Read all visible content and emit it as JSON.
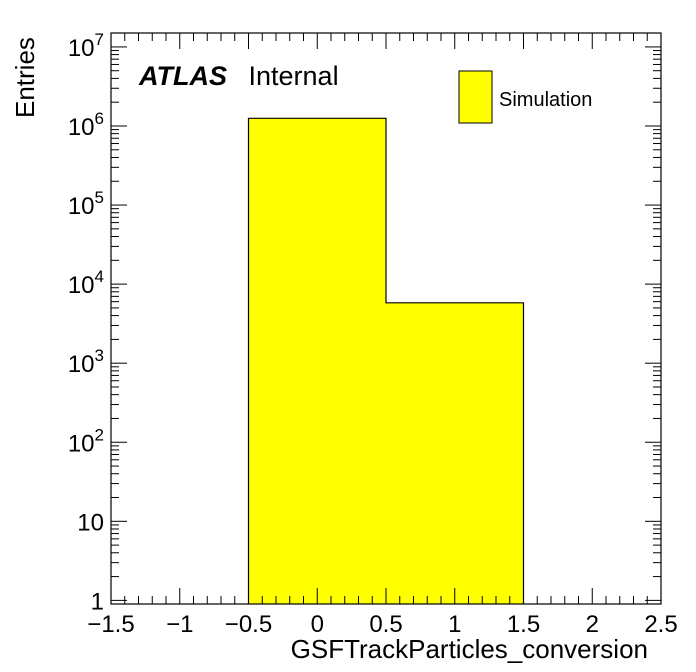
{
  "chart_data": {
    "type": "bar",
    "bins": [
      {
        "x_low": -0.5,
        "x_high": 0.5,
        "value": 1250000
      },
      {
        "x_low": 0.5,
        "x_high": 1.5,
        "value": 5800
      }
    ],
    "xlabel": "GSFTrackParticles_conversion",
    "ylabel": "Entries",
    "xlim": [
      -1.5,
      2.5
    ],
    "ylim": [
      0.9,
      15000000
    ],
    "yscale": "log",
    "x_ticks": [
      {
        "value": -1.5,
        "label": "−1.5"
      },
      {
        "value": -1.0,
        "label": "−1"
      },
      {
        "value": -0.5,
        "label": "−0.5"
      },
      {
        "value": 0.0,
        "label": "0"
      },
      {
        "value": 0.5,
        "label": "0.5"
      },
      {
        "value": 1.0,
        "label": "1"
      },
      {
        "value": 1.5,
        "label": "1.5"
      },
      {
        "value": 2.0,
        "label": "2"
      },
      {
        "value": 2.5,
        "label": "2.5"
      }
    ],
    "y_ticks": [
      {
        "value": 1,
        "base": "1",
        "exp": ""
      },
      {
        "value": 10,
        "base": "10",
        "exp": ""
      },
      {
        "value": 100,
        "base": "10",
        "exp": "2"
      },
      {
        "value": 1000,
        "base": "10",
        "exp": "3"
      },
      {
        "value": 10000,
        "base": "10",
        "exp": "4"
      },
      {
        "value": 100000,
        "base": "10",
        "exp": "5"
      },
      {
        "value": 1000000,
        "base": "10",
        "exp": "6"
      },
      {
        "value": 10000000,
        "base": "10",
        "exp": "7"
      }
    ],
    "legend": {
      "label": "Simulation",
      "placement": "top-right"
    },
    "atlas_label": {
      "bold": "ATLAS",
      "text": "Internal"
    },
    "grid": false
  },
  "colors": {
    "fill": "#ffff00",
    "line": "#000000"
  }
}
